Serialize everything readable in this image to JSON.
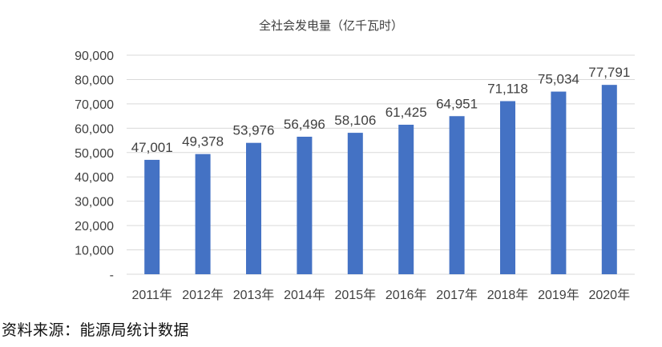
{
  "chart_data": {
    "type": "bar",
    "title": "全社会发电量（亿千瓦时）",
    "categories": [
      "2011年",
      "2012年",
      "2013年",
      "2014年",
      "2015年",
      "2016年",
      "2017年",
      "2018年",
      "2019年",
      "2020年"
    ],
    "values": [
      47001,
      49378,
      53976,
      56496,
      58106,
      61425,
      64951,
      71118,
      75034,
      77791
    ],
    "value_labels": [
      "47,001",
      "49,378",
      "53,976",
      "56,496",
      "58,106",
      "61,425",
      "64,951",
      "71,118",
      "75,034",
      "77,791"
    ],
    "y_ticks": [
      0,
      10000,
      20000,
      30000,
      40000,
      50000,
      60000,
      70000,
      80000,
      90000
    ],
    "y_tick_labels": [
      "-",
      "10,000",
      "20,000",
      "30,000",
      "40,000",
      "50,000",
      "60,000",
      "70,000",
      "80,000",
      "90,000"
    ],
    "ylim": [
      0,
      90000
    ],
    "grid": true,
    "legend": "none",
    "bar_color": "#4472c4",
    "xlabel": "",
    "ylabel": ""
  },
  "source_note": "资料来源：能源局统计数据"
}
